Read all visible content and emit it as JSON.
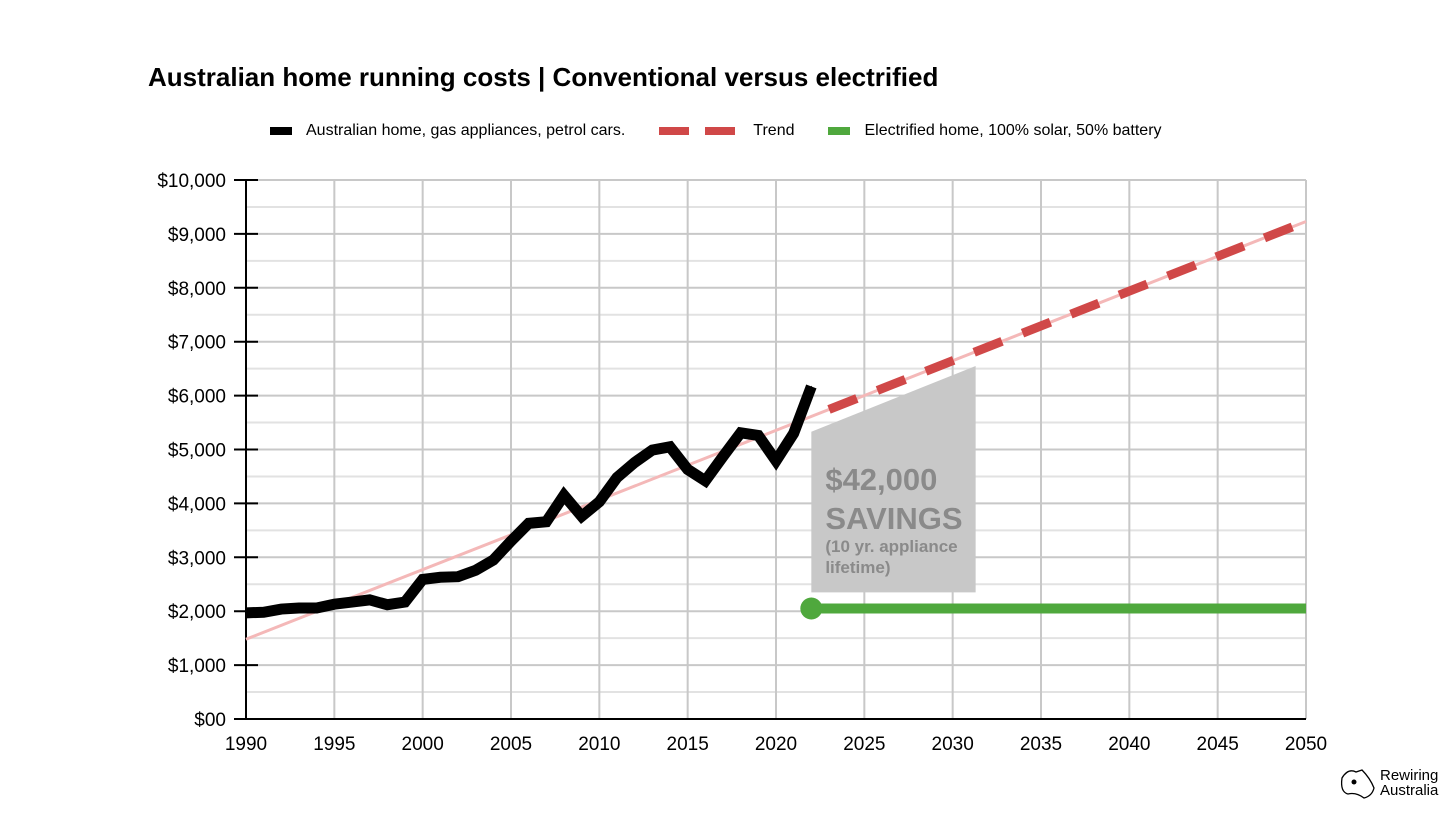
{
  "chart_data": {
    "type": "line",
    "title": "Australian home running costs | Conventional versus electrified",
    "xlim": [
      1990,
      2050
    ],
    "ylim": [
      0,
      10000
    ],
    "x_ticks": [
      "1990",
      "1995",
      "2000",
      "2005",
      "2010",
      "2015",
      "2020",
      "2025",
      "2030",
      "2035",
      "2040",
      "2045",
      "2050"
    ],
    "y_ticks": [
      "$00",
      "$1,000",
      "$2,000",
      "$3,000",
      "$4,000",
      "$5,000",
      "$6,000",
      "$7,000",
      "$8,000",
      "$9,000",
      "$10,000"
    ],
    "grid": true,
    "legend_placement": "top",
    "series": [
      {
        "name": "Australian home, gas appliances, petrol cars.",
        "color": "#000000",
        "x": [
          1990,
          1991,
          1992,
          1993,
          1994,
          1995,
          1996,
          1997,
          1998,
          1999,
          2000,
          2001,
          2002,
          2003,
          2004,
          2005,
          2006,
          2007,
          2008,
          2009,
          2010,
          2011,
          2012,
          2013,
          2014,
          2015,
          2016,
          2017,
          2018,
          2019,
          2020,
          2021,
          2022
        ],
        "y": [
          1970,
          1980,
          2040,
          2060,
          2060,
          2130,
          2170,
          2210,
          2120,
          2170,
          2590,
          2630,
          2640,
          2760,
          2950,
          3300,
          3630,
          3660,
          4150,
          3760,
          4030,
          4480,
          4760,
          4990,
          5050,
          4630,
          4420,
          4870,
          5310,
          5260,
          4790,
          5300,
          6170
        ]
      },
      {
        "name": "Trend",
        "color": "#d04848",
        "x": [
          1990,
          2050
        ],
        "y": [
          1480,
          9230
        ],
        "dashed_from": 2023
      },
      {
        "name": "Electrified home, 100% solar, 50% battery",
        "color": "#4fa83d",
        "x": [
          2022,
          2050
        ],
        "y": [
          2050,
          2050
        ]
      }
    ],
    "annotation": {
      "value": "$42,000",
      "label": "SAVINGS",
      "note_line1": "(10 yr. appliance",
      "note_line2": "lifetime)",
      "region": {
        "x": [
          2022,
          2031.3
        ],
        "y_top": [
          5330,
          6550
        ],
        "y_bottom": 2350
      }
    }
  },
  "logo": {
    "line1": "Rewiring",
    "line2": "Australia"
  }
}
